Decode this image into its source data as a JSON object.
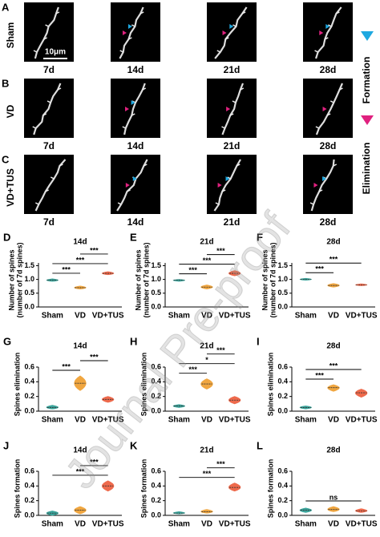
{
  "watermark": "Journal Pre-proof",
  "image_panels": {
    "letters": [
      "A",
      "B",
      "C"
    ],
    "rows": [
      "Sham",
      "VD",
      "VD+TUS"
    ],
    "columns": [
      "7d",
      "14d",
      "21d",
      "28d"
    ],
    "scale_bar": "10μm",
    "legend": [
      {
        "label": "Formation",
        "color": "#1ea8e0"
      },
      {
        "label": "Elimination",
        "color": "#e0217f"
      }
    ]
  },
  "chart_data": [
    {
      "type": "violin",
      "letter": "D",
      "title": "14d",
      "ylabel": [
        "Number of spines",
        "(number of 7d spines)"
      ],
      "categories": [
        "Sham",
        "VD",
        "VD+TUS"
      ],
      "colors": [
        "#3aa39a",
        "#f0a640",
        "#ee6a4c"
      ],
      "values": [
        0.97,
        0.7,
        1.22
      ],
      "low": [
        0.93,
        0.65,
        1.17
      ],
      "high": [
        1.02,
        0.76,
        1.28
      ],
      "ylim": [
        0,
        1.6
      ],
      "yticks": [
        {
          "value": 0,
          "label": "0.0"
        },
        0.5,
        {
          "value": 1,
          "label": "1.0"
        },
        1.5
      ],
      "annotations": [
        {
          "pair": [
            "Sham",
            "VD"
          ],
          "text": "***"
        },
        {
          "pair": [
            "Sham",
            "VD+TUS"
          ],
          "text": "***"
        },
        {
          "pair": [
            "VD",
            "VD+TUS"
          ],
          "text": "***"
        }
      ]
    },
    {
      "type": "violin",
      "letter": "E",
      "title": "21d",
      "ylabel": [
        "Number of spines",
        "(number of 7d spines)"
      ],
      "categories": [
        "Sham",
        "VD",
        "VD+TUS"
      ],
      "colors": [
        "#3aa39a",
        "#f0a640",
        "#ee6a4c"
      ],
      "values": [
        0.97,
        0.72,
        1.22
      ],
      "low": [
        0.93,
        0.65,
        1.13
      ],
      "high": [
        1.0,
        0.8,
        1.32
      ],
      "ylim": [
        0,
        1.6
      ],
      "yticks": [
        {
          "value": 0,
          "label": "0.0"
        },
        0.5,
        {
          "value": 1,
          "label": "1.0"
        },
        1.5
      ],
      "annotations": [
        {
          "pair": [
            "Sham",
            "VD"
          ],
          "text": "***"
        },
        {
          "pair": [
            "Sham",
            "VD+TUS"
          ],
          "text": "***"
        },
        {
          "pair": [
            "VD",
            "VD+TUS"
          ],
          "text": "***"
        }
      ]
    },
    {
      "type": "violin",
      "letter": "F",
      "title": "28d",
      "ylabel": [
        "Number of spines",
        "(number of 7d spines)"
      ],
      "categories": [
        "Sham",
        "VD",
        "VD+TUS"
      ],
      "colors": [
        "#3aa39a",
        "#f0a640",
        "#ee6a4c"
      ],
      "values": [
        1.0,
        0.78,
        0.8
      ],
      "low": [
        0.97,
        0.72,
        0.77
      ],
      "high": [
        1.04,
        0.85,
        0.84
      ],
      "ylim": [
        0,
        1.6
      ],
      "yticks": [
        {
          "value": 0,
          "label": "0.0"
        },
        0.5,
        {
          "value": 1,
          "label": "1.0"
        },
        1.5
      ],
      "annotations": [
        {
          "pair": [
            "Sham",
            "VD"
          ],
          "text": "***"
        },
        {
          "pair": [
            "Sham",
            "VD+TUS"
          ],
          "text": "***"
        }
      ]
    },
    {
      "type": "violin",
      "letter": "G",
      "title": "14d",
      "ylabel": [
        "Spines elimination"
      ],
      "categories": [
        "Sham",
        "VD",
        "VD+TUS"
      ],
      "colors": [
        "#3aa39a",
        "#f0a640",
        "#ee6a4c"
      ],
      "values": [
        0.05,
        0.38,
        0.16
      ],
      "low": [
        0.03,
        0.28,
        0.12
      ],
      "high": [
        0.08,
        0.48,
        0.2
      ],
      "ylim": [
        0,
        0.6
      ],
      "yticks": [
        {
          "value": 0,
          "label": "0.0"
        },
        0.2,
        0.4,
        0.6
      ],
      "annotations": [
        {
          "pair": [
            "Sham",
            "VD"
          ],
          "text": "***"
        },
        {
          "pair": [
            "VD",
            "VD+TUS"
          ],
          "text": "***"
        }
      ]
    },
    {
      "type": "violin",
      "letter": "H",
      "title": "21d",
      "ylabel": [
        "Spines elimination"
      ],
      "categories": [
        "Sham",
        "VD",
        "VD+TUS"
      ],
      "colors": [
        "#3aa39a",
        "#f0a640",
        "#ee6a4c"
      ],
      "values": [
        0.07,
        0.37,
        0.15
      ],
      "low": [
        0.05,
        0.3,
        0.1
      ],
      "high": [
        0.09,
        0.44,
        0.2
      ],
      "ylim": [
        0,
        0.6
      ],
      "yticks": [
        {
          "value": 0,
          "label": "0.0"
        },
        0.2,
        0.4,
        0.6
      ],
      "annotations": [
        {
          "pair": [
            "Sham",
            "VD"
          ],
          "text": "***"
        },
        {
          "pair": [
            "Sham",
            "VD+TUS"
          ],
          "text": "*"
        },
        {
          "pair": [
            "VD",
            "VD+TUS"
          ],
          "text": "***"
        }
      ]
    },
    {
      "type": "violin",
      "letter": "I",
      "title": "28d",
      "ylabel": [
        "Spines elimination"
      ],
      "categories": [
        "Sham",
        "VD",
        "VD+TUS"
      ],
      "colors": [
        "#3aa39a",
        "#f0a640",
        "#ee6a4c"
      ],
      "values": [
        0.05,
        0.32,
        0.25
      ],
      "low": [
        0.03,
        0.27,
        0.19
      ],
      "high": [
        0.07,
        0.36,
        0.3
      ],
      "ylim": [
        0,
        0.6
      ],
      "yticks": [
        {
          "value": 0,
          "label": "0.0"
        },
        0.2,
        0.4,
        0.6
      ],
      "annotations": [
        {
          "pair": [
            "Sham",
            "VD"
          ],
          "text": "***"
        },
        {
          "pair": [
            "Sham",
            "VD+TUS"
          ],
          "text": "***"
        }
      ]
    },
    {
      "type": "violin",
      "letter": "J",
      "title": "14d",
      "ylabel": [
        "Spines formation"
      ],
      "categories": [
        "Sham",
        "VD",
        "VD+TUS"
      ],
      "colors": [
        "#3aa39a",
        "#f0a640",
        "#ee6a4c"
      ],
      "values": [
        0.03,
        0.07,
        0.4
      ],
      "low": [
        0.0,
        0.02,
        0.33
      ],
      "high": [
        0.06,
        0.12,
        0.47
      ],
      "ylim": [
        0,
        0.6
      ],
      "yticks": [
        {
          "value": 0,
          "label": "0.0"
        },
        0.2,
        0.4,
        0.6
      ],
      "annotations": [
        {
          "pair": [
            "Sham",
            "VD+TUS"
          ],
          "text": "***"
        },
        {
          "pair": [
            "VD",
            "VD+TUS"
          ],
          "text": "***"
        }
      ]
    },
    {
      "type": "violin",
      "letter": "K",
      "title": "21d",
      "ylabel": [
        "Spines formation"
      ],
      "categories": [
        "Sham",
        "VD",
        "VD+TUS"
      ],
      "colors": [
        "#3aa39a",
        "#f0a640",
        "#ee6a4c"
      ],
      "values": [
        0.03,
        0.05,
        0.38
      ],
      "low": [
        0.02,
        0.03,
        0.33
      ],
      "high": [
        0.05,
        0.08,
        0.44
      ],
      "ylim": [
        0,
        0.6
      ],
      "yticks": [
        {
          "value": 0,
          "label": "0.0"
        },
        0.2,
        0.4,
        0.6
      ],
      "annotations": [
        {
          "pair": [
            "Sham",
            "VD+TUS"
          ],
          "text": "***"
        },
        {
          "pair": [
            "VD",
            "VD+TUS"
          ],
          "text": "***"
        }
      ]
    },
    {
      "type": "violin",
      "letter": "L",
      "title": "28d",
      "ylabel": [
        "Spines formation"
      ],
      "categories": [
        "Sham",
        "VD",
        "VD+TUS"
      ],
      "colors": [
        "#3aa39a",
        "#f0a640",
        "#ee6a4c"
      ],
      "values": [
        0.07,
        0.08,
        0.06
      ],
      "low": [
        0.04,
        0.05,
        0.04
      ],
      "high": [
        0.1,
        0.12,
        0.09
      ],
      "ylim": [
        0,
        0.6
      ],
      "yticks": [
        {
          "value": 0,
          "label": "0.0"
        },
        0.2,
        0.4,
        0.6
      ],
      "annotations": [
        {
          "pair": [
            "Sham",
            "VD+TUS"
          ],
          "text": "ns"
        }
      ]
    }
  ]
}
